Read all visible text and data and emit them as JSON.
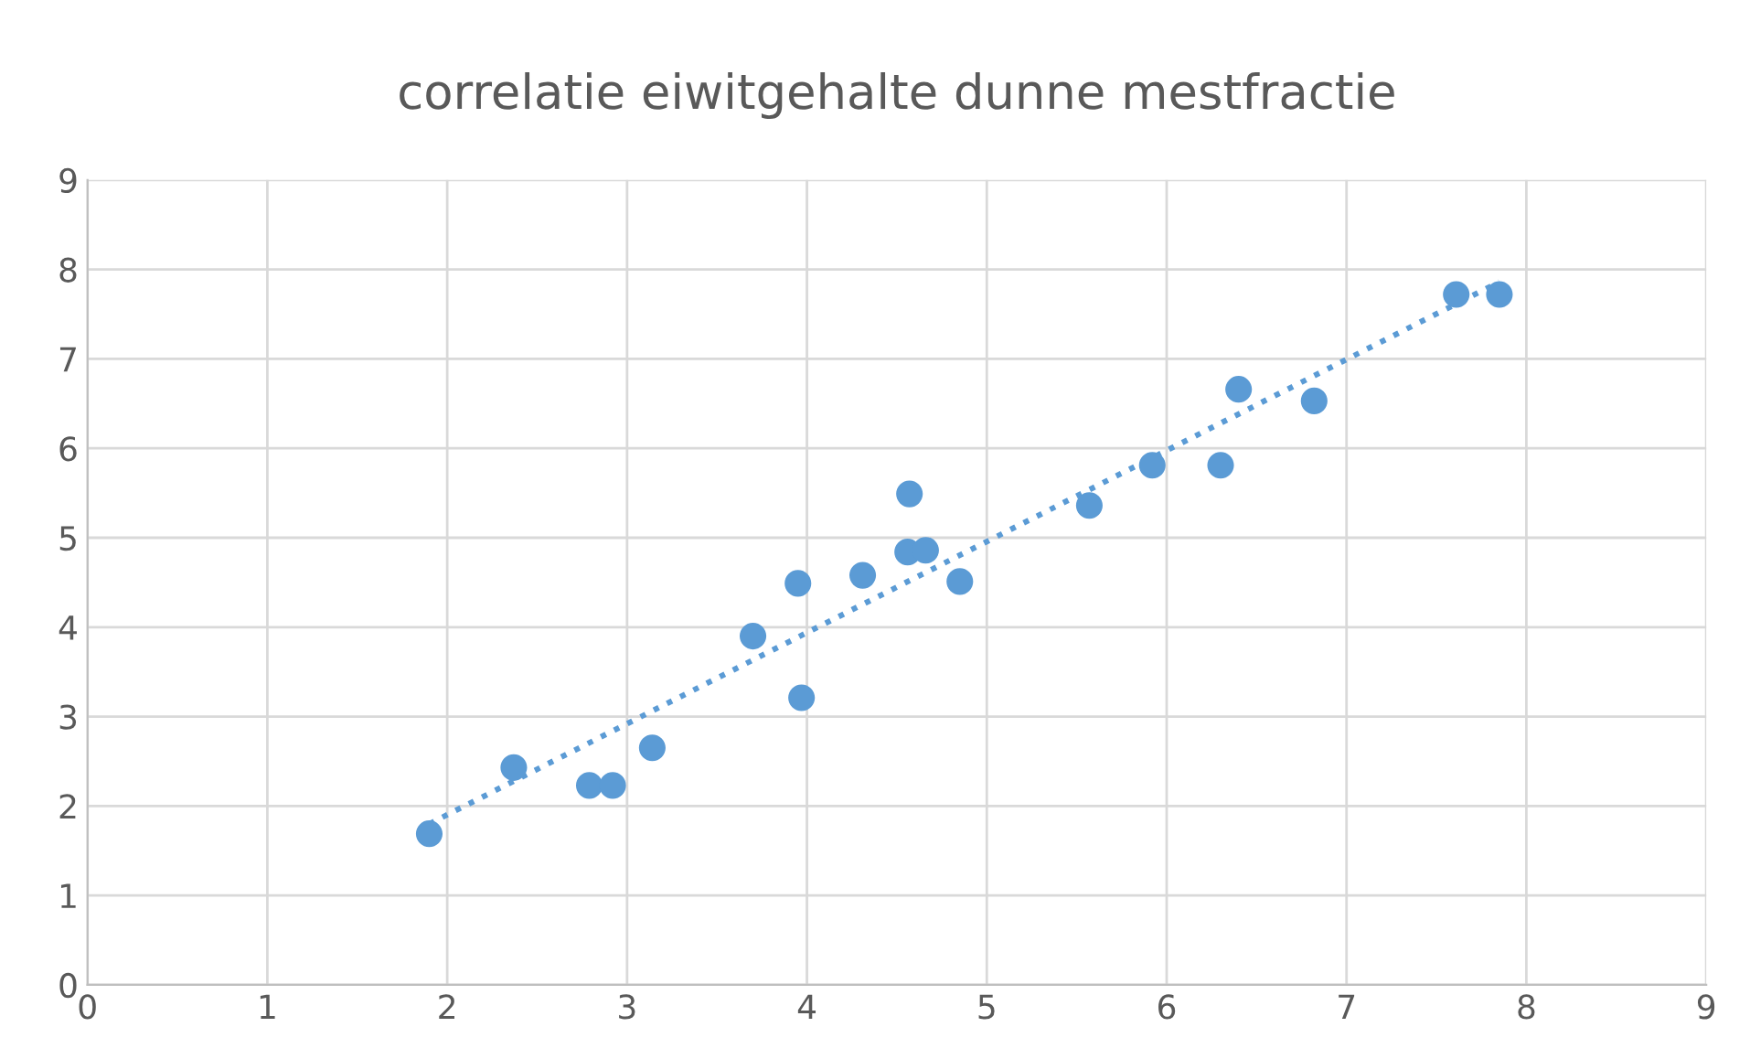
{
  "chart_data": {
    "type": "scatter",
    "title": "correlatie eiwitgehalte dunne mestfractie",
    "xlim": [
      0,
      9
    ],
    "xticks": [
      0,
      1,
      2,
      3,
      4,
      5,
      6,
      7,
      8,
      9
    ],
    "ylim": [
      0,
      9
    ],
    "yticks": [
      0,
      1,
      2,
      3,
      4,
      5,
      6,
      7,
      8,
      9
    ],
    "grid": true,
    "marker": "circle",
    "series": [
      {
        "color": "#5b9bd5",
        "x": [
          1.9,
          2.37,
          2.79,
          2.92,
          3.14,
          3.7,
          3.95,
          3.97,
          4.31,
          4.57,
          4.56,
          4.66,
          4.85,
          5.57,
          5.92,
          6.3,
          6.4,
          6.82,
          7.61,
          7.85
        ],
        "values": [
          1.69,
          2.43,
          2.23,
          2.23,
          2.65,
          3.9,
          4.49,
          3.21,
          4.58,
          5.49,
          4.84,
          4.86,
          4.51,
          5.36,
          5.81,
          5.81,
          6.66,
          6.53,
          7.72,
          7.72
        ]
      },
      {
        "type": "line",
        "color": "#5b9bd5",
        "line_style": "dotted",
        "marker": "none",
        "x": [
          1.9,
          7.85
        ],
        "values": [
          1.8,
          7.86
        ]
      }
    ]
  }
}
